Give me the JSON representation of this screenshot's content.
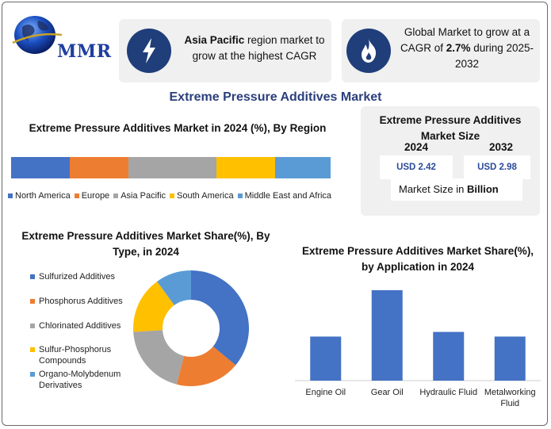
{
  "header": {
    "logo_text": "MMR",
    "info_1": {
      "bold": "Asia Pacific",
      "text": " region market to grow at the highest CAGR",
      "icon": "lightning-icon"
    },
    "info_2": {
      "pre": "Global Market to grow at a CAGR of ",
      "bold": "2.7%",
      "post": " during 2025-2032",
      "icon": "flame-icon"
    }
  },
  "title": "Extreme Pressure Additives Market",
  "market_size": {
    "title": "Extreme Pressure Additives Market Size",
    "year_1": "2024",
    "value_1": "USD 2.42",
    "year_2": "2032",
    "value_2": "USD 2.98",
    "unit_pre": "Market Size in ",
    "unit_bold": "Billion"
  },
  "chart_data": [
    {
      "type": "bar",
      "orientation": "stacked-horizontal",
      "title": "Extreme Pressure Additives Market in 2024 (%), By Region",
      "categories": [
        "North America",
        "Europe",
        "Asia Pacific",
        "South America",
        "Middle East and Africa"
      ],
      "values": [
        18,
        18,
        27,
        18,
        17
      ],
      "colors": [
        "#4472c4",
        "#ed7d31",
        "#a5a5a5",
        "#ffc000",
        "#5b9bd5"
      ],
      "legend": "bottom"
    },
    {
      "type": "pie",
      "style": "donut",
      "title": "Extreme Pressure Additives Market Share(%), By Type, in 2024",
      "categories": [
        "Sulfurized Additives",
        "Phosphorus Additives",
        "Chlorinated Additives",
        "Sulfur-Phosphorus Compounds",
        "Organo-Molybdenum Derivatives"
      ],
      "values": [
        36,
        18,
        20,
        16,
        10
      ],
      "colors": [
        "#4472c4",
        "#ed7d31",
        "#a5a5a5",
        "#ffc000",
        "#5b9bd5"
      ],
      "legend": "left"
    },
    {
      "type": "bar",
      "title": "Extreme Pressure Additives Market Share(%), by Application in  2024",
      "categories": [
        "Engine Oil",
        "Gear Oil",
        "Hydraulic Fluid",
        "Metalworking Fluid"
      ],
      "values": [
        19,
        39,
        21,
        19
      ],
      "ylim": [
        0,
        40
      ],
      "color": "#4472c4",
      "legend": "none"
    }
  ]
}
